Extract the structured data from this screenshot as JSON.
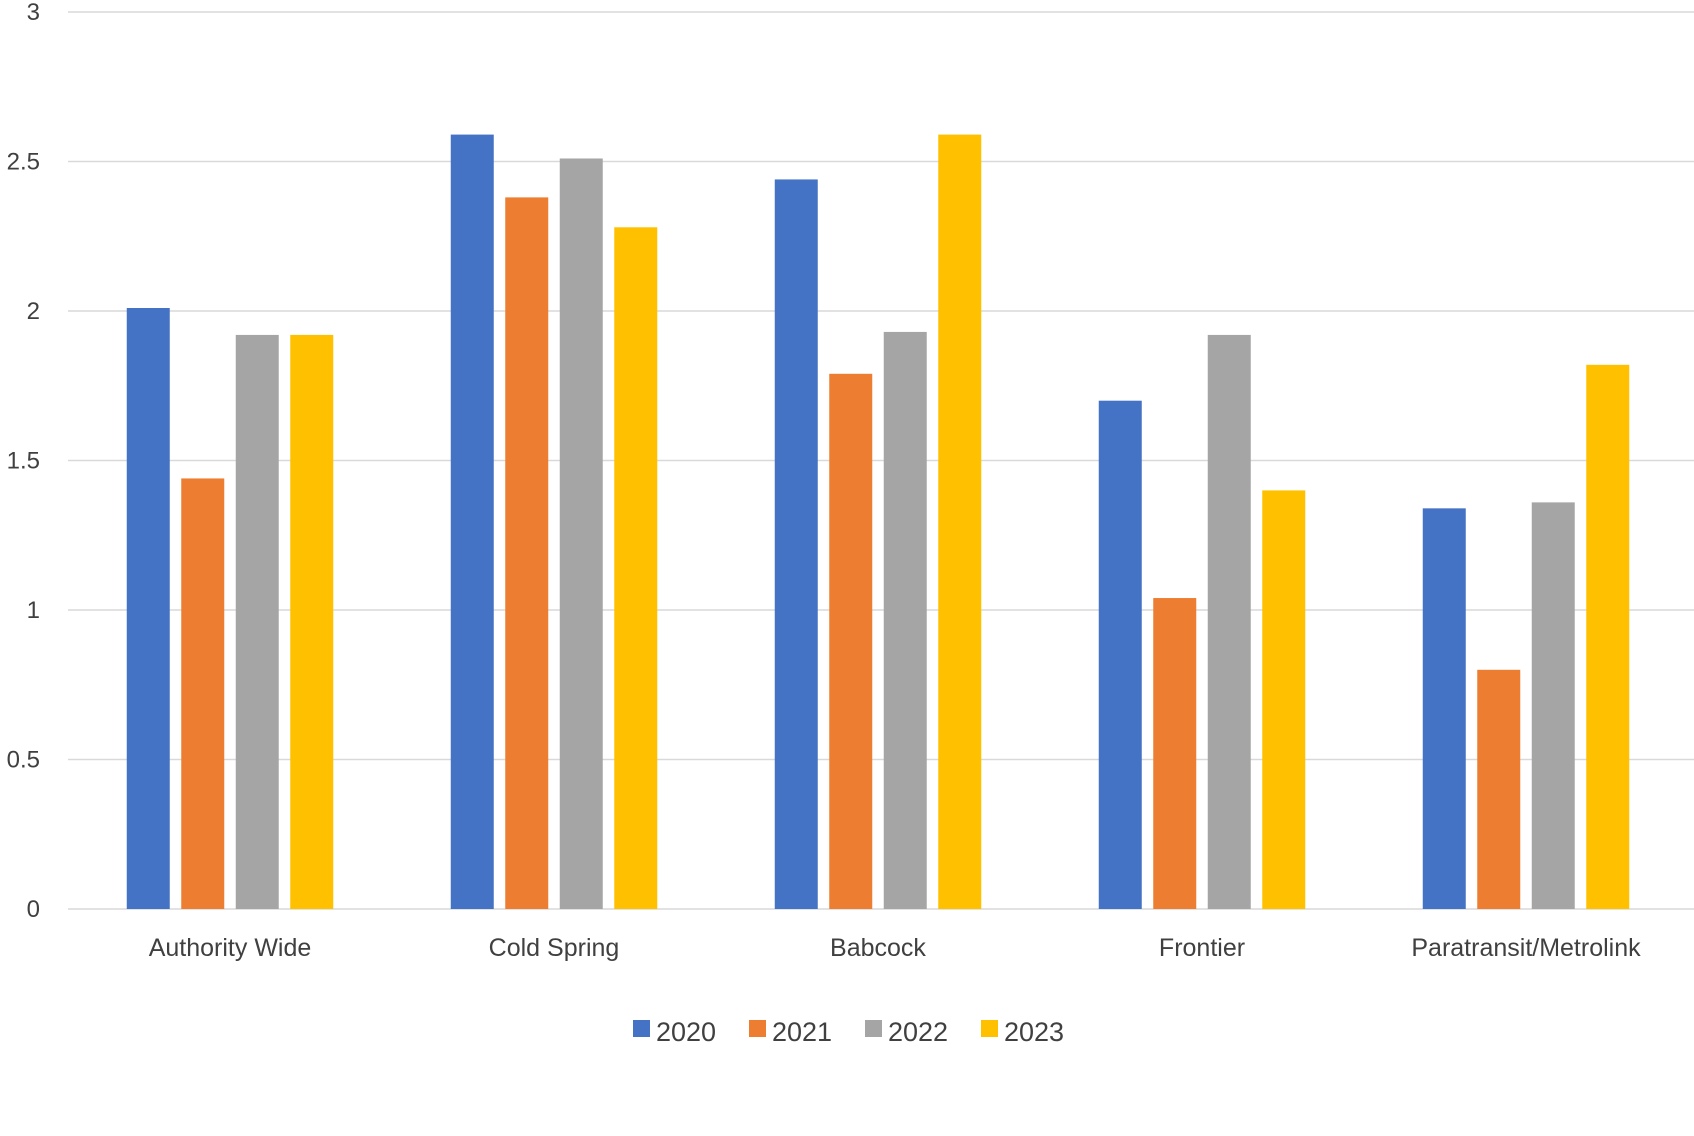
{
  "chart_data": {
    "type": "bar",
    "title": "",
    "xlabel": "",
    "ylabel": "",
    "ylim": [
      0,
      3
    ],
    "yticks": [
      "0",
      "0.5",
      "1",
      "1.5",
      "2",
      "2.5",
      "3"
    ],
    "categories": [
      "Authority Wide",
      "Cold Spring",
      "Babcock",
      "Frontier",
      "Paratransit/Metrolink"
    ],
    "series": [
      {
        "name": "2020",
        "color": "#4472C4",
        "values": [
          2.01,
          2.59,
          2.44,
          1.7,
          1.34
        ]
      },
      {
        "name": "2021",
        "color": "#ED7D31",
        "values": [
          1.44,
          2.38,
          1.79,
          1.04,
          0.8
        ]
      },
      {
        "name": "2022",
        "color": "#A5A5A5",
        "values": [
          1.92,
          2.51,
          1.93,
          1.92,
          1.36
        ]
      },
      {
        "name": "2023",
        "color": "#FFC000",
        "values": [
          1.92,
          2.28,
          2.59,
          1.4,
          1.82
        ]
      }
    ],
    "grid": true,
    "legend_position": "bottom"
  }
}
